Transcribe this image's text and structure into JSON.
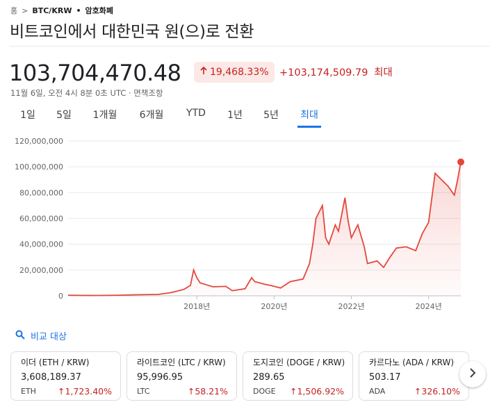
{
  "breadcrumb": {
    "home": "홈",
    "separator": ">",
    "pair": "BTC/KRW",
    "dot": "•",
    "category": "암호화폐"
  },
  "title": "비트코인에서 대한민국 원(으)로 전환",
  "price": "103,704,470.48",
  "change_percent": "19,468.33%",
  "change_absolute": "+103,174,509.79",
  "change_period": "최대",
  "meta": "11월 6일, 오전 4시 8분 0초 UTC · 면책조항",
  "ranges": [
    "1일",
    "5일",
    "1개월",
    "6개월",
    "YTD",
    "1년",
    "5년",
    "최대"
  ],
  "active_range": "최대",
  "compare_label": "비교 대상",
  "colors": {
    "accent": "#1a73e8",
    "negative_up": "#c5221f",
    "line": "#e4473c"
  },
  "chart_data": {
    "type": "line",
    "xlabel": "",
    "ylabel": "",
    "x": [
      "2014-09",
      "2015-01",
      "2015-06",
      "2016-01",
      "2016-06",
      "2017-01",
      "2017-05",
      "2017-09",
      "2017-11",
      "2017-12",
      "2018-01",
      "2018-02",
      "2018-04",
      "2018-06",
      "2018-10",
      "2018-12",
      "2019-04",
      "2019-06",
      "2019-07",
      "2019-10",
      "2019-12",
      "2020-03",
      "2020-06",
      "2020-10",
      "2020-12",
      "2021-01",
      "2021-02",
      "2021-04",
      "2021-05",
      "2021-06",
      "2021-08",
      "2021-09",
      "2021-11",
      "2021-12",
      "2022-01",
      "2022-03",
      "2022-05",
      "2022-06",
      "2022-09",
      "2022-11",
      "2023-01",
      "2023-03",
      "2023-06",
      "2023-09",
      "2023-11",
      "2024-01",
      "2024-03",
      "2024-05",
      "2024-07",
      "2024-09",
      "2024-10",
      "2024-11"
    ],
    "y": [
      500000,
      300000,
      260000,
      500000,
      800000,
      1100000,
      2500000,
      5000000,
      8000000,
      20000000,
      14000000,
      10000000,
      8500000,
      7000000,
      7300000,
      4000000,
      5500000,
      14000000,
      11000000,
      9000000,
      8000000,
      6000000,
      11000000,
      13000000,
      25000000,
      40000000,
      60000000,
      70000000,
      45000000,
      40000000,
      55000000,
      50000000,
      76000000,
      58000000,
      45000000,
      55000000,
      38000000,
      25000000,
      27000000,
      22000000,
      30000000,
      37000000,
      38000000,
      35000000,
      48000000,
      57000000,
      95000000,
      90000000,
      85000000,
      78000000,
      90000000,
      103704470
    ],
    "xlim": [
      "2014-09",
      "2024-11"
    ],
    "ylim": [
      0,
      120000000
    ],
    "y_ticks": [
      "0",
      "20,000,000",
      "40,000,000",
      "60,000,000",
      "80,000,000",
      "100,000,000",
      "120,000,000"
    ],
    "x_ticks": [
      "2018년",
      "2020년",
      "2022년",
      "2024년"
    ],
    "grid": true,
    "last_point_marker": true
  },
  "cards": [
    {
      "name": "이더 (ETH / KRW)",
      "price": "3,608,189.37",
      "symbol": "ETH",
      "change": "1,723.40%"
    },
    {
      "name": "라이트코인 (LTC / KRW)",
      "price": "95,996.95",
      "symbol": "LTC",
      "change": "58.21%"
    },
    {
      "name": "도지코인 (DOGE / KRW)",
      "price": "289.65",
      "symbol": "DOGE",
      "change": "1,506.92%"
    },
    {
      "name": "카르다노 (ADA / KRW)",
      "price": "503.17",
      "symbol": "ADA",
      "change": "326.10%"
    }
  ]
}
